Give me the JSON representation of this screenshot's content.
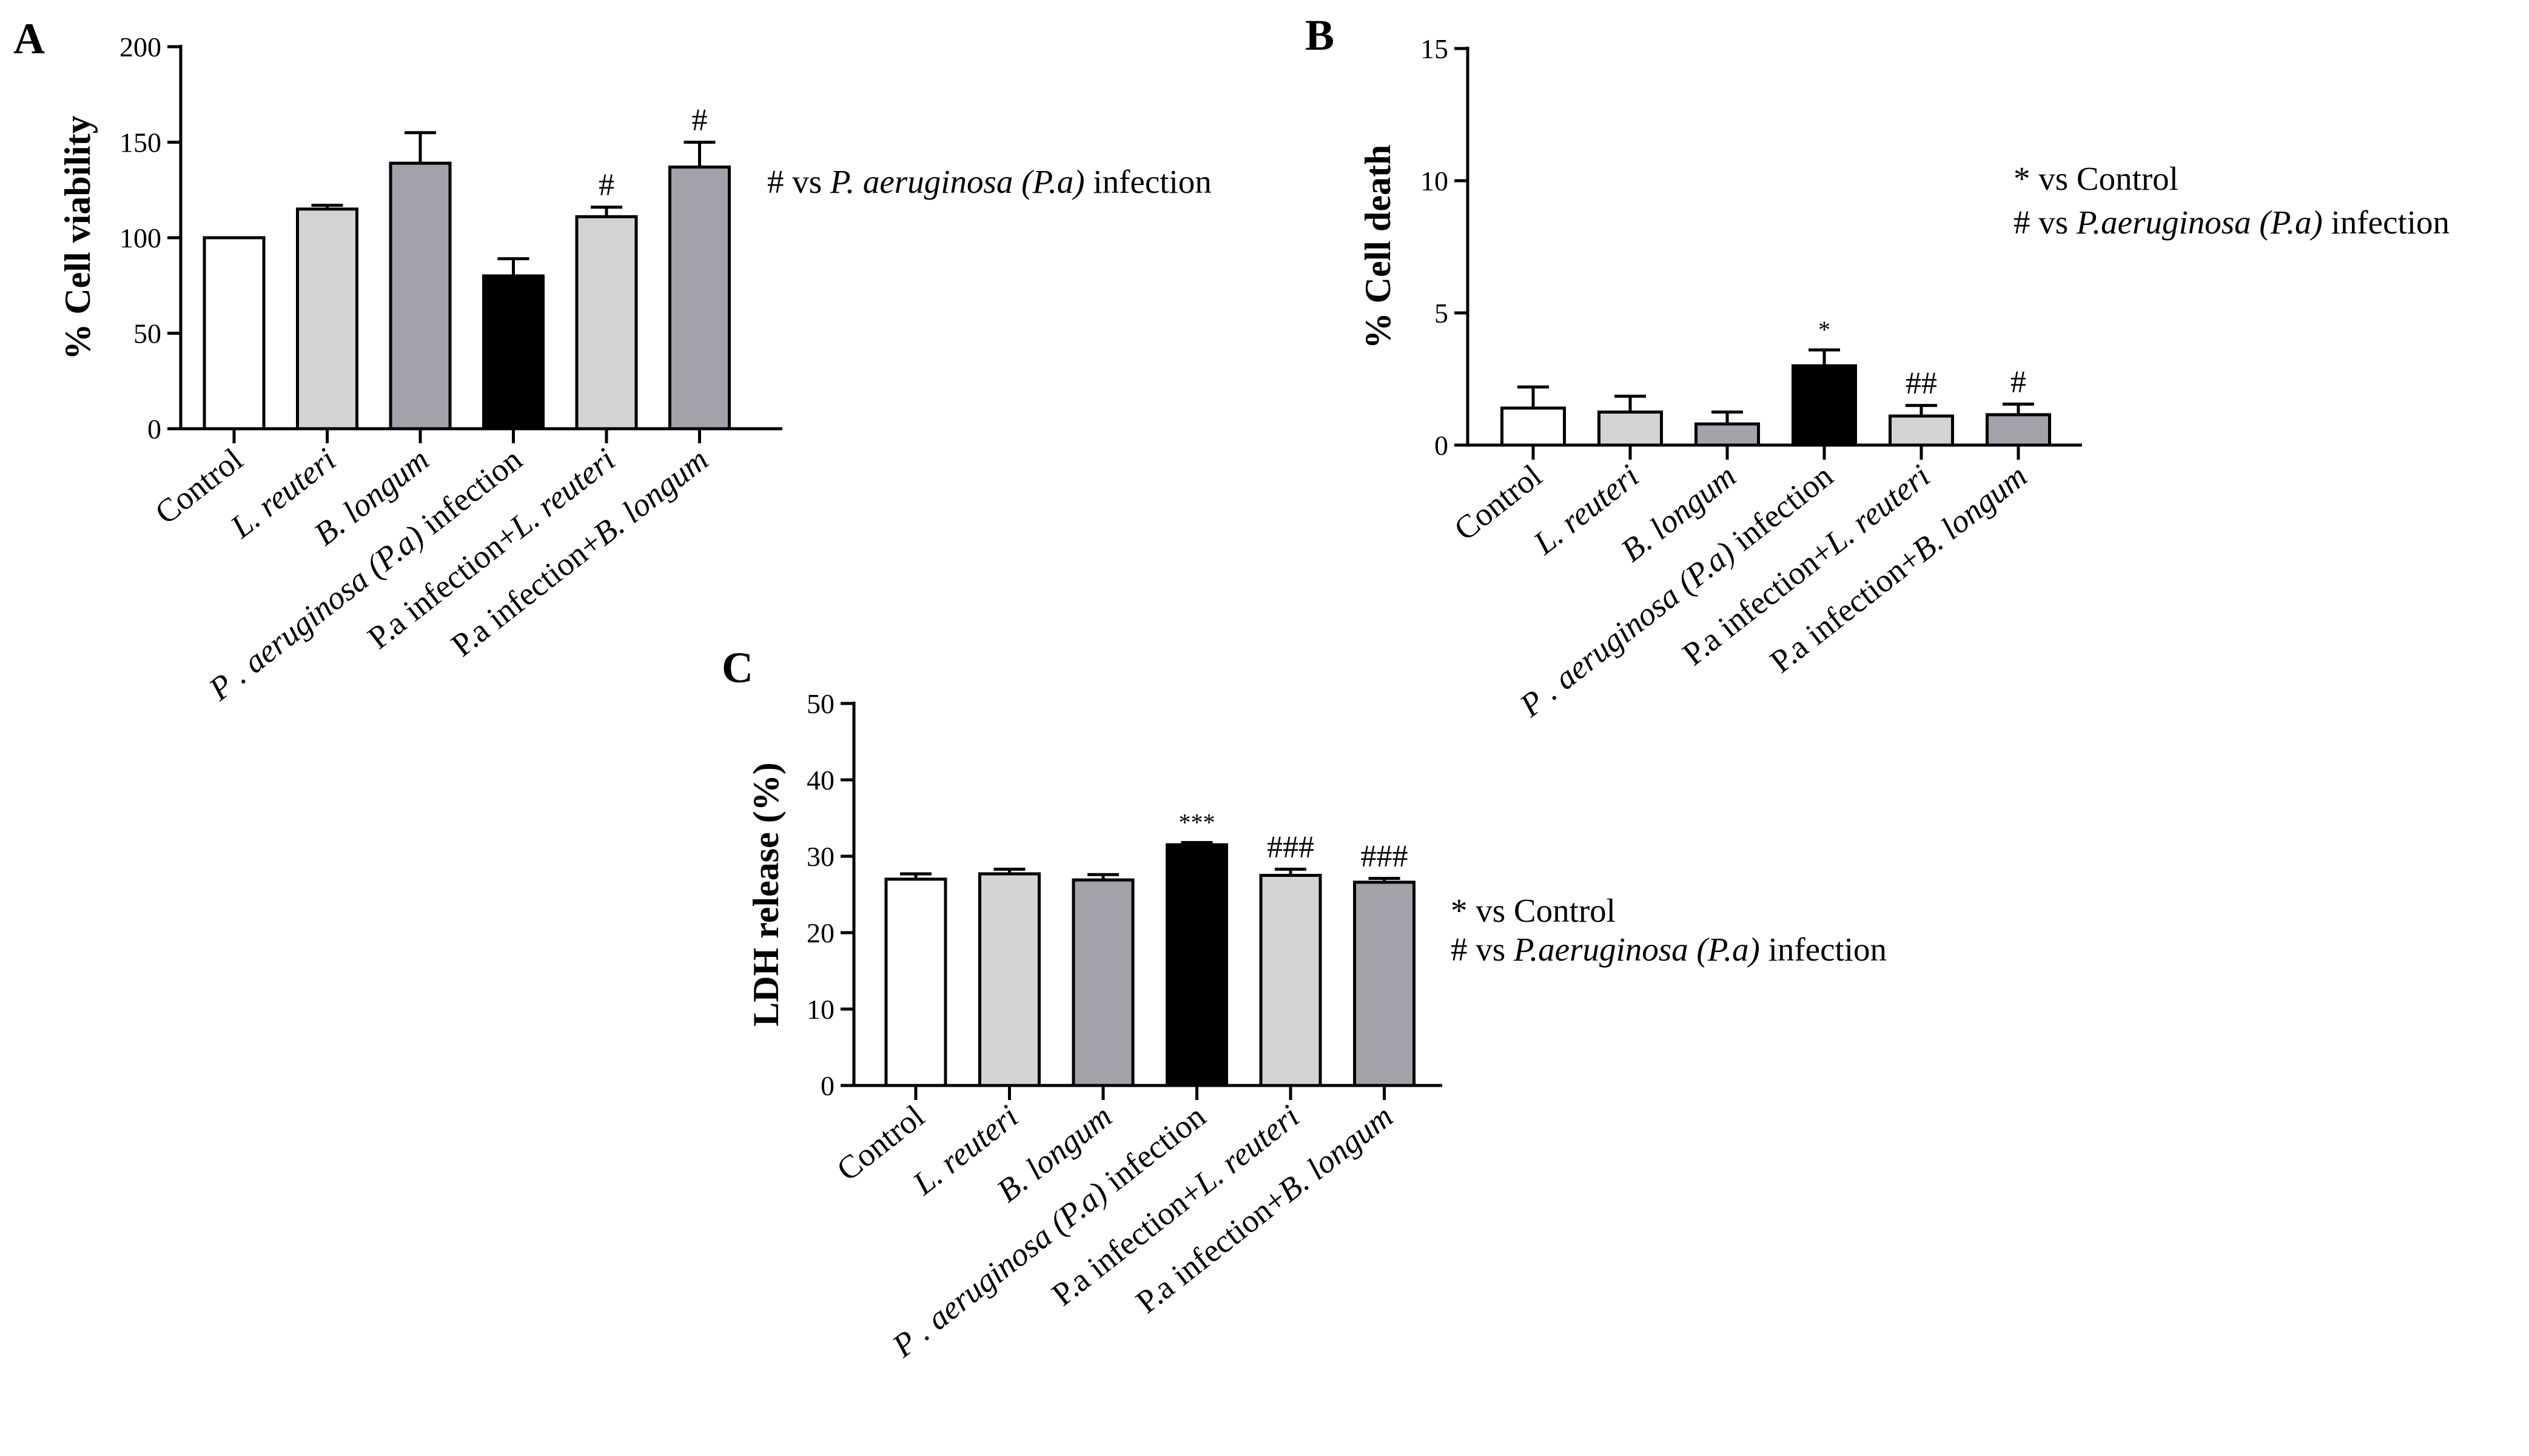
{
  "colors": {
    "white": "#ffffff",
    "light_gray": "#d3d3d3",
    "dark_gray": "#a3a2aa",
    "black": "#000000",
    "axis": "#000000"
  },
  "chart_data": [
    {
      "id": "A",
      "panel_label": "A",
      "type": "bar",
      "ylabel": "% Cell viability",
      "ylim": [
        0,
        200
      ],
      "yticks": [
        0,
        50,
        100,
        150,
        200
      ],
      "categories": [
        {
          "pre": "",
          "it": "",
          "post": "Control"
        },
        {
          "pre": "",
          "it": "L. reuteri",
          "post": ""
        },
        {
          "pre": "",
          "it": "B. longum",
          "post": ""
        },
        {
          "pre": "",
          "it": "P . aeruginosa (P.a)",
          "post": " infection"
        },
        {
          "pre": "P.a infection+",
          "it": "L. reuteri",
          "post": ""
        },
        {
          "pre": "P.a infection+",
          "it": "B. longum",
          "post": ""
        }
      ],
      "values": [
        100,
        115,
        139,
        80,
        111,
        137
      ],
      "errors": [
        0,
        2,
        16,
        9,
        5,
        13
      ],
      "fills": [
        "white",
        "light_gray",
        "dark_gray",
        "black",
        "light_gray",
        "dark_gray"
      ],
      "significance": [
        "",
        "",
        "",
        "",
        "#",
        "#"
      ],
      "legend": [
        {
          "pre": "# vs ",
          "it": "P. aeruginosa (P.a)",
          "post": " infection"
        }
      ]
    },
    {
      "id": "B",
      "panel_label": "B",
      "type": "bar",
      "ylabel": "% Cell death",
      "ylim": [
        0,
        15
      ],
      "yticks": [
        0,
        5,
        10,
        15
      ],
      "categories": [
        {
          "pre": "",
          "it": "",
          "post": "Control"
        },
        {
          "pre": "",
          "it": "L. reuteri",
          "post": ""
        },
        {
          "pre": "",
          "it": "B. longum",
          "post": ""
        },
        {
          "pre": "",
          "it": "P . aeruginosa (P.a)",
          "post": " infection"
        },
        {
          "pre": "P.a infection+",
          "it": "L. reuteri",
          "post": ""
        },
        {
          "pre": "P.a infection+",
          "it": "B. longum",
          "post": ""
        }
      ],
      "values": [
        1.4,
        1.25,
        0.8,
        3.0,
        1.1,
        1.15
      ],
      "errors": [
        0.8,
        0.6,
        0.45,
        0.6,
        0.4,
        0.4
      ],
      "fills": [
        "white",
        "light_gray",
        "dark_gray",
        "black",
        "light_gray",
        "dark_gray"
      ],
      "significance": [
        "",
        "",
        "",
        "*",
        "##",
        "#"
      ],
      "legend": [
        {
          "pre": "* vs Control",
          "it": "",
          "post": ""
        },
        {
          "pre": "# vs ",
          "it": "P.aeruginosa (P.a)",
          "post": " infection"
        }
      ]
    },
    {
      "id": "C",
      "panel_label": "C",
      "type": "bar",
      "ylabel": "LDH release (%)",
      "ylim": [
        0,
        50
      ],
      "yticks": [
        0,
        10,
        20,
        30,
        40,
        50
      ],
      "categories": [
        {
          "pre": "",
          "it": "",
          "post": "Control"
        },
        {
          "pre": "",
          "it": "L. reuteri",
          "post": ""
        },
        {
          "pre": "",
          "it": "B. longum",
          "post": ""
        },
        {
          "pre": "",
          "it": "P . aeruginosa (P.a)",
          "post": " infection"
        },
        {
          "pre": "P.a infection+",
          "it": "L. reuteri",
          "post": ""
        },
        {
          "pre": "P.a infection+",
          "it": "B. longum",
          "post": ""
        }
      ],
      "values": [
        27,
        27.7,
        26.9,
        31.5,
        27.5,
        26.6
      ],
      "errors": [
        0.7,
        0.6,
        0.7,
        0.3,
        0.8,
        0.5
      ],
      "fills": [
        "white",
        "light_gray",
        "dark_gray",
        "black",
        "light_gray",
        "dark_gray"
      ],
      "significance": [
        "",
        "",
        "",
        "***",
        "###",
        "###"
      ],
      "legend": [
        {
          "pre": "* vs Control",
          "it": "",
          "post": ""
        },
        {
          "pre": "# vs ",
          "it": "P.aeruginosa (P.a)",
          "post": " infection"
        }
      ]
    }
  ]
}
